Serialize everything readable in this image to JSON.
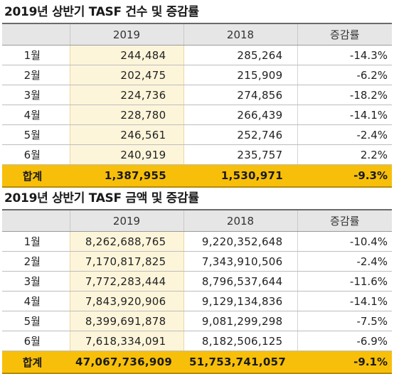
{
  "tables": [
    {
      "title": "2019년 상반기 TASF 건수 및 증감률",
      "headers": [
        "",
        "2019",
        "2018",
        "증감률"
      ],
      "rows": [
        {
          "month": "1월",
          "y2019": "244,484",
          "y2018": "285,264",
          "rate": "-14.3%"
        },
        {
          "month": "2월",
          "y2019": "202,475",
          "y2018": "215,909",
          "rate": "-6.2%"
        },
        {
          "month": "3월",
          "y2019": "224,736",
          "y2018": "274,856",
          "rate": "-18.2%"
        },
        {
          "month": "4월",
          "y2019": "228,780",
          "y2018": "266,439",
          "rate": "-14.1%"
        },
        {
          "month": "5월",
          "y2019": "246,561",
          "y2018": "252,746",
          "rate": "-2.4%"
        },
        {
          "month": "6월",
          "y2019": "240,919",
          "y2018": "235,757",
          "rate": "2.2%"
        }
      ],
      "total": {
        "month": "합계",
        "y2019": "1,387,955",
        "y2018": "1,530,971",
        "rate": "-9.3%"
      }
    },
    {
      "title": "2019년 상반기 TASF 금액 및 증감률",
      "headers": [
        "",
        "2019",
        "2018",
        "증감률"
      ],
      "rows": [
        {
          "month": "1월",
          "y2019": "8,262,688,765",
          "y2018": "9,220,352,648",
          "rate": "-10.4%"
        },
        {
          "month": "2월",
          "y2019": "7,170,817,825",
          "y2018": "7,343,910,506",
          "rate": "-2.4%"
        },
        {
          "month": "3월",
          "y2019": "7,772,283,444",
          "y2018": "8,796,537,644",
          "rate": "-11.6%"
        },
        {
          "month": "4월",
          "y2019": "7,843,920,906",
          "y2018": "9,129,134,836",
          "rate": "-14.1%"
        },
        {
          "month": "5월",
          "y2019": "8,399,691,878",
          "y2018": "9,081,299,298",
          "rate": "-7.5%"
        },
        {
          "month": "6월",
          "y2019": "7,618,334,091",
          "y2018": "8,182,506,125",
          "rate": "-6.9%"
        }
      ],
      "total": {
        "month": "합계",
        "y2019": "47,067,736,909",
        "y2018": "51,753,741,057",
        "rate": "-9.1%"
      }
    }
  ],
  "colors": {
    "highlight_column": "#fdf5da",
    "total_row": "#f7bf0a",
    "header_bg": "#e6e6e6"
  }
}
